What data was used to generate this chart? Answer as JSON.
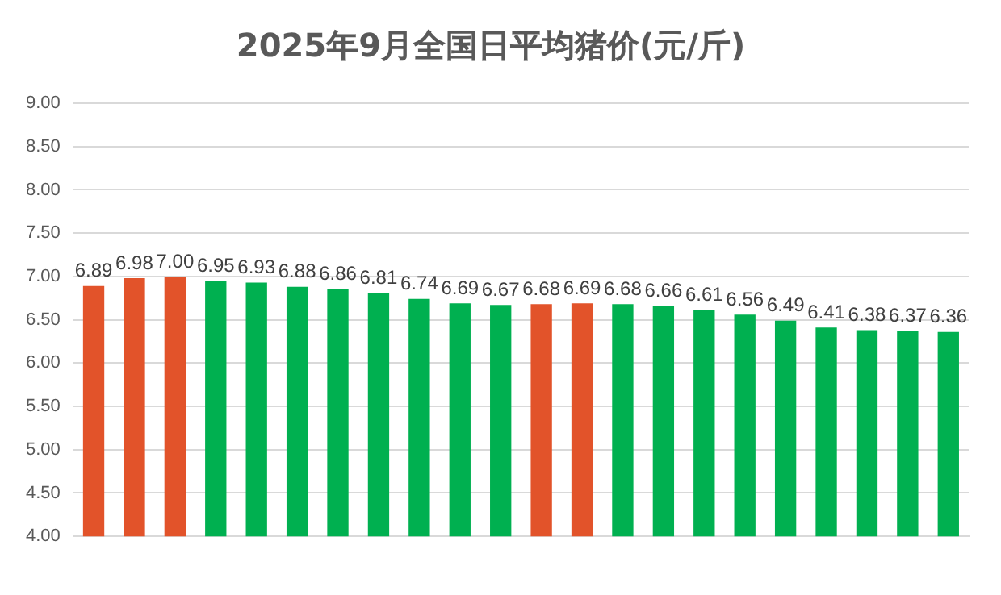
{
  "chart_data": {
    "type": "bar",
    "title": "2025年9月全国日平均猪价(元/斤)",
    "categories": [
      null,
      null,
      null,
      null,
      null,
      null,
      null,
      null,
      null,
      null,
      null,
      null,
      null,
      null,
      null,
      null,
      null,
      null,
      null,
      null,
      null,
      null
    ],
    "values": [
      6.89,
      6.98,
      7.0,
      6.95,
      6.93,
      6.88,
      6.86,
      6.81,
      6.74,
      6.69,
      6.67,
      6.68,
      6.69,
      6.68,
      6.66,
      6.61,
      6.56,
      6.49,
      6.41,
      6.38,
      6.37,
      6.36
    ],
    "value_labels": [
      "6.89",
      "6.98",
      "7.00",
      "6.95",
      "6.93",
      "6.88",
      "6.86",
      "6.81",
      "6.74",
      "6.69",
      "6.67",
      "6.68",
      "6.69",
      "6.68",
      "6.66",
      "6.61",
      "6.56",
      "6.49",
      "6.41",
      "6.38",
      "6.37",
      "6.36"
    ],
    "colors": [
      "#e2532a",
      "#e2532a",
      "#e2532a",
      "#00b050",
      "#00b050",
      "#00b050",
      "#00b050",
      "#00b050",
      "#00b050",
      "#00b050",
      "#00b050",
      "#e2532a",
      "#e2532a",
      "#00b050",
      "#00b050",
      "#00b050",
      "#00b050",
      "#00b050",
      "#00b050",
      "#00b050",
      "#00b050",
      "#00b050"
    ],
    "ylim": [
      4,
      9
    ],
    "yticks": [
      {
        "value": 4,
        "label": "4.00"
      },
      {
        "value": 4.5,
        "label": "4.50"
      },
      {
        "value": 5,
        "label": "5.00"
      },
      {
        "value": 5.5,
        "label": "5.50"
      },
      {
        "value": 6,
        "label": "6.00"
      },
      {
        "value": 6.5,
        "label": "6.50"
      },
      {
        "value": 7,
        "label": "7.00"
      },
      {
        "value": 7.5,
        "label": "7.50"
      },
      {
        "value": 8,
        "label": "8.00"
      },
      {
        "value": 8.5,
        "label": "8.50"
      },
      {
        "value": 9,
        "label": "9.00"
      }
    ],
    "grid": "y"
  }
}
